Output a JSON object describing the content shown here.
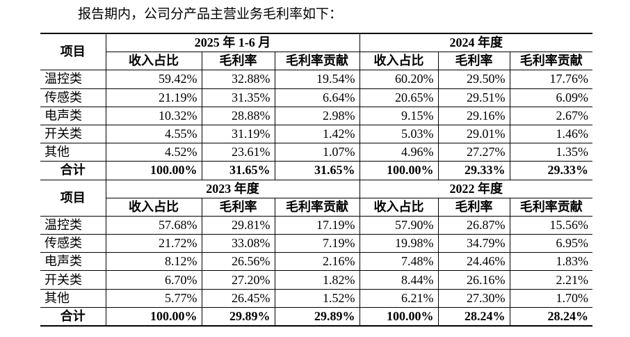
{
  "intro": "报告期内，公司分产品主营业务毛利率如下：",
  "blocks": [
    {
      "item": "项目",
      "periods": [
        "2025 年 1-6 月",
        "2024 年度"
      ],
      "columns": [
        "收入占比",
        "毛利率",
        "毛利率贡献",
        "收入占比",
        "毛利率",
        "毛利率贡献"
      ],
      "rows": [
        [
          "温控类",
          "59.42%",
          "32.88%",
          "19.54%",
          "60.20%",
          "29.50%",
          "17.76%"
        ],
        [
          "传感类",
          "21.19%",
          "31.35%",
          "6.64%",
          "20.65%",
          "29.51%",
          "6.09%"
        ],
        [
          "电声类",
          "10.32%",
          "28.88%",
          "2.98%",
          "9.15%",
          "29.16%",
          "2.67%"
        ],
        [
          "开关类",
          "4.55%",
          "31.19%",
          "1.42%",
          "5.03%",
          "29.01%",
          "1.46%"
        ],
        [
          "其他",
          "4.52%",
          "23.61%",
          "1.07%",
          "4.96%",
          "27.27%",
          "1.35%"
        ],
        [
          "合计",
          "100.00%",
          "31.65%",
          "31.65%",
          "100.00%",
          "29.33%",
          "29.33%"
        ]
      ]
    },
    {
      "item": "项目",
      "periods": [
        "2023 年度",
        "2022 年度"
      ],
      "columns": [
        "收入占比",
        "毛利率",
        "毛利率贡献",
        "收入占比",
        "毛利率",
        "毛利率贡献"
      ],
      "rows": [
        [
          "温控类",
          "57.68%",
          "29.81%",
          "17.19%",
          "57.90%",
          "26.87%",
          "15.56%"
        ],
        [
          "传感类",
          "21.72%",
          "33.08%",
          "7.19%",
          "19.98%",
          "34.79%",
          "6.95%"
        ],
        [
          "电声类",
          "8.12%",
          "26.56%",
          "2.16%",
          "7.48%",
          "24.46%",
          "1.83%"
        ],
        [
          "开关类",
          "6.70%",
          "27.20%",
          "1.82%",
          "8.44%",
          "26.16%",
          "2.21%"
        ],
        [
          "其他",
          "5.77%",
          "26.45%",
          "1.52%",
          "6.21%",
          "27.30%",
          "1.70%"
        ],
        [
          "合计",
          "100.00%",
          "29.89%",
          "29.89%",
          "100.00%",
          "28.24%",
          "28.24%"
        ]
      ]
    }
  ]
}
